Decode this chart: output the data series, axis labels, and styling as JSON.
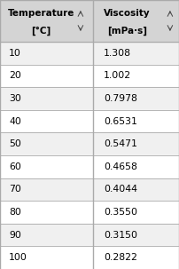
{
  "col1_header_line1": "Temperature",
  "col1_header_line2": "[°C]",
  "col2_header_line1": "Viscosity",
  "col2_header_line2": "[mPa·s]",
  "temperatures": [
    10,
    20,
    30,
    40,
    50,
    60,
    70,
    80,
    90,
    100
  ],
  "viscosities": [
    "1.308",
    "1.002",
    "0.7978",
    "0.6531",
    "0.5471",
    "0.4658",
    "0.4044",
    "0.3550",
    "0.3150",
    "0.2822"
  ],
  "header_bg": "#d4d4d4",
  "row_bg_even": "#f0f0f0",
  "row_bg_odd": "#ffffff",
  "border_color": "#aaaaaa",
  "text_color": "#000000",
  "header_fontsize": 7.5,
  "cell_fontsize": 7.8,
  "fig_width": 2.02,
  "fig_height": 3.03,
  "dpi": 100
}
